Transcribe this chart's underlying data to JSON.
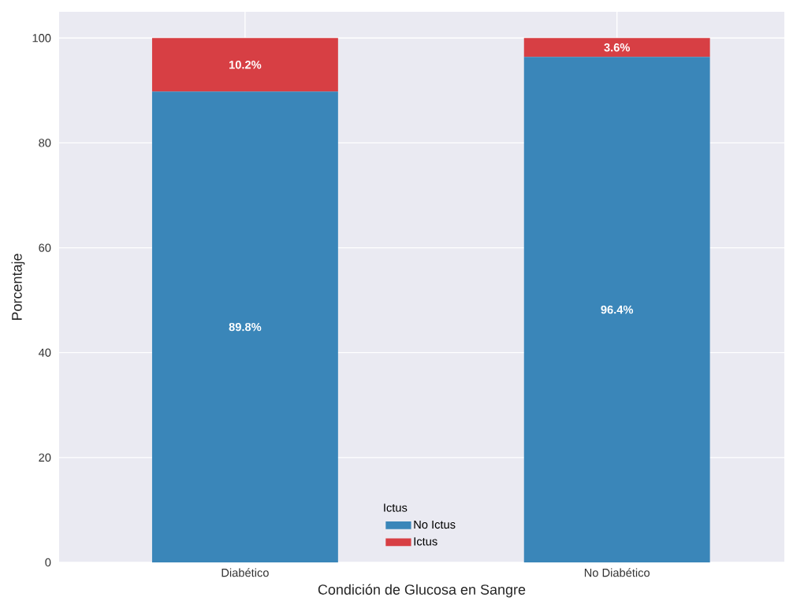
{
  "chart_data": {
    "type": "bar",
    "stacked": true,
    "xlabel": "Condición de Glucosa en Sangre",
    "ylabel": "Porcentaje",
    "legend_title": "Ictus",
    "categories": [
      "Diabético",
      "No Diabético"
    ],
    "series": [
      {
        "name": "No Ictus",
        "color": "#3a86b9",
        "values": [
          89.8,
          96.4
        ],
        "value_labels": [
          "89.8%",
          "96.4%"
        ]
      },
      {
        "name": "Ictus",
        "color": "#d73f44",
        "values": [
          10.2,
          3.6
        ],
        "value_labels": [
          "10.2%",
          "3.6%"
        ]
      }
    ],
    "ylim": [
      0,
      105
    ],
    "yticks": [
      0,
      20,
      40,
      60,
      80,
      100
    ],
    "grid": true,
    "legend": "bottom"
  }
}
